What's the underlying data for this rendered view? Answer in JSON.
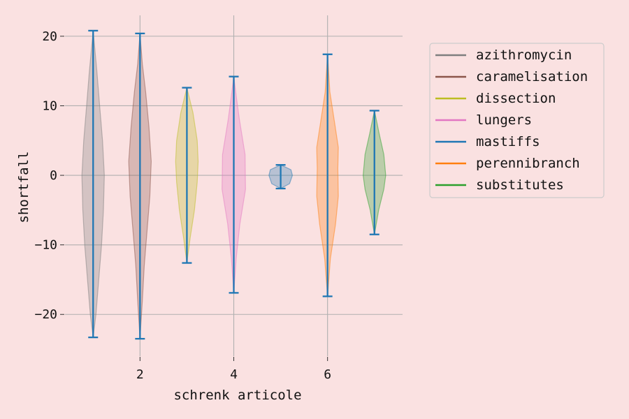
{
  "chart_data": {
    "type": "violin",
    "title": "",
    "xlabel": "schrenk articole",
    "ylabel": "shortfall",
    "xlim": [
      0.4,
      7.6
    ],
    "ylim": [
      -26,
      23
    ],
    "x_ticks": [
      2,
      4,
      6
    ],
    "y_ticks": [
      -20,
      -10,
      0,
      10,
      20
    ],
    "grid": true,
    "legend_position": "upper-right-outside",
    "background_color": "#fae1e1",
    "range_line_color": "#1f77b4",
    "series": [
      {
        "name": "azithromycin",
        "color": "#7f7f7f",
        "x": 1,
        "min": -23.3,
        "max": 20.8,
        "profile": [
          [
            -23.3,
            0.0
          ],
          [
            -20,
            0.06
          ],
          [
            -15,
            0.12
          ],
          [
            -10,
            0.18
          ],
          [
            -5,
            0.22
          ],
          [
            0,
            0.24
          ],
          [
            5,
            0.2
          ],
          [
            10,
            0.14
          ],
          [
            15,
            0.08
          ],
          [
            20.8,
            0.0
          ]
        ]
      },
      {
        "name": "caramelisation",
        "color": "#8c564b",
        "x": 2,
        "min": -23.5,
        "max": 20.4,
        "profile": [
          [
            -23.5,
            0.0
          ],
          [
            -18,
            0.05
          ],
          [
            -13,
            0.09
          ],
          [
            -8,
            0.15
          ],
          [
            -3,
            0.21
          ],
          [
            2,
            0.24
          ],
          [
            7,
            0.19
          ],
          [
            12,
            0.12
          ],
          [
            16,
            0.05
          ],
          [
            20.4,
            0.0
          ]
        ]
      },
      {
        "name": "dissection",
        "color": "#bcbd22",
        "x": 3,
        "min": -12.6,
        "max": 12.6,
        "profile": [
          [
            -12.6,
            0.0
          ],
          [
            -9,
            0.07
          ],
          [
            -5,
            0.16
          ],
          [
            -1,
            0.22
          ],
          [
            2,
            0.24
          ],
          [
            5,
            0.22
          ],
          [
            9,
            0.13
          ],
          [
            12.6,
            0.0
          ]
        ]
      },
      {
        "name": "lungers",
        "color": "#e377c2",
        "x": 4,
        "min": -16.9,
        "max": 14.2,
        "profile": [
          [
            -16.9,
            0.0
          ],
          [
            -12,
            0.05
          ],
          [
            -7,
            0.13
          ],
          [
            -2,
            0.25
          ],
          [
            3,
            0.24
          ],
          [
            8,
            0.12
          ],
          [
            11,
            0.06
          ],
          [
            14.2,
            0.0
          ]
        ]
      },
      {
        "name": "mastiffs",
        "color": "#1f77b4",
        "x": 5,
        "min": -1.9,
        "max": 1.5,
        "profile": [
          [
            -1.9,
            0.0
          ],
          [
            -1.2,
            0.19
          ],
          [
            0,
            0.25
          ],
          [
            0.8,
            0.22
          ],
          [
            1.5,
            0.0
          ]
        ]
      },
      {
        "name": "perennibranch",
        "color": "#ff7f0e",
        "x": 6,
        "min": -17.4,
        "max": 17.4,
        "profile": [
          [
            -17.4,
            0.0
          ],
          [
            -12,
            0.06
          ],
          [
            -7,
            0.17
          ],
          [
            -3,
            0.23
          ],
          [
            1,
            0.22
          ],
          [
            4,
            0.23
          ],
          [
            8,
            0.14
          ],
          [
            12,
            0.05
          ],
          [
            17.4,
            0.0
          ]
        ]
      },
      {
        "name": "substitutes",
        "color": "#2ca02c",
        "x": 7,
        "min": -8.5,
        "max": 9.3,
        "profile": [
          [
            -8.5,
            0.0
          ],
          [
            -5,
            0.09
          ],
          [
            -2,
            0.2
          ],
          [
            0,
            0.24
          ],
          [
            3,
            0.2
          ],
          [
            6,
            0.1
          ],
          [
            9.3,
            0.0
          ]
        ]
      }
    ]
  }
}
